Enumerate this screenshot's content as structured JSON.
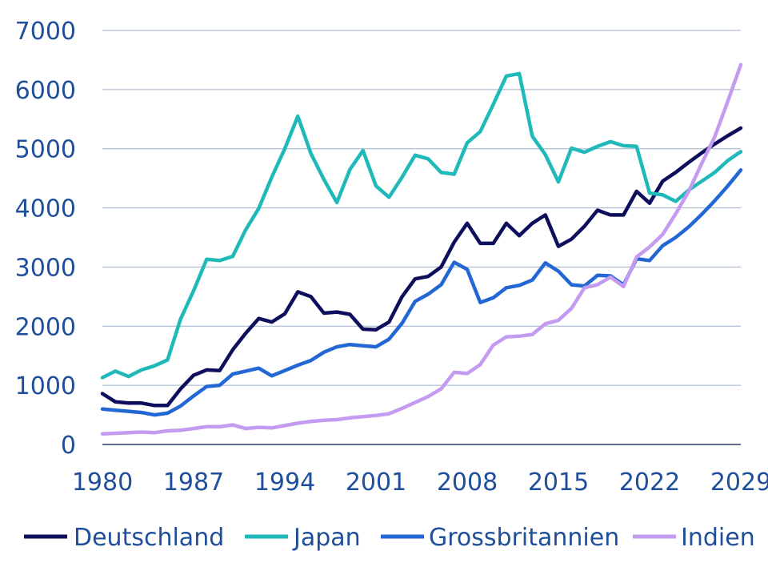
{
  "chart_data": {
    "type": "line",
    "title": "",
    "xlabel": "",
    "ylabel": "",
    "ylim": [
      0,
      7000
    ],
    "xlim": [
      1980,
      2029
    ],
    "yticks": [
      "0",
      "1000",
      "2000",
      "3000",
      "4000",
      "5000",
      "6000",
      "7000"
    ],
    "xticks": [
      "1980",
      "1987",
      "1994",
      "2001",
      "2008",
      "2015",
      "2022",
      "2029"
    ],
    "grid": "horizontal",
    "legend_position": "bottom",
    "x": [
      1980,
      1981,
      1982,
      1983,
      1984,
      1985,
      1986,
      1987,
      1988,
      1989,
      1990,
      1991,
      1992,
      1993,
      1994,
      1995,
      1996,
      1997,
      1998,
      1999,
      2000,
      2001,
      2002,
      2003,
      2004,
      2005,
      2006,
      2007,
      2008,
      2009,
      2010,
      2011,
      2012,
      2013,
      2014,
      2015,
      2016,
      2017,
      2018,
      2019,
      2020,
      2021,
      2022,
      2023,
      2024,
      2025,
      2026,
      2027,
      2028,
      2029
    ],
    "series": [
      {
        "name": "Deutschland",
        "color": "#0d0e5c",
        "values": [
          860,
          720,
          700,
          700,
          660,
          660,
          940,
          1170,
          1260,
          1250,
          1600,
          1880,
          2130,
          2070,
          2210,
          2580,
          2500,
          2220,
          2240,
          2200,
          1950,
          1940,
          2070,
          2500,
          2800,
          2840,
          3000,
          3420,
          3740,
          3400,
          3400,
          3740,
          3530,
          3740,
          3880,
          3350,
          3470,
          3690,
          3960,
          3880,
          3880,
          4280,
          4080,
          4450,
          4600,
          4770,
          4930,
          5080,
          5220,
          5350
        ]
      },
      {
        "name": "Japan",
        "color": "#20b9ba",
        "values": [
          1130,
          1240,
          1150,
          1260,
          1330,
          1430,
          2120,
          2600,
          3130,
          3110,
          3180,
          3630,
          3990,
          4520,
          5000,
          5550,
          4920,
          4480,
          4090,
          4650,
          4970,
          4370,
          4180,
          4520,
          4890,
          4830,
          4600,
          4570,
          5100,
          5290,
          5750,
          6230,
          6270,
          5210,
          4900,
          4440,
          5010,
          4940,
          5040,
          5120,
          5050,
          5040,
          4250,
          4220,
          4110,
          4300,
          4450,
          4600,
          4800,
          4950
        ]
      },
      {
        "name": "Grossbritannien",
        "color": "#2367d4",
        "values": [
          600,
          580,
          560,
          540,
          500,
          530,
          650,
          820,
          980,
          1000,
          1190,
          1240,
          1290,
          1160,
          1250,
          1340,
          1420,
          1560,
          1650,
          1690,
          1670,
          1650,
          1780,
          2050,
          2420,
          2540,
          2700,
          3080,
          2960,
          2400,
          2480,
          2650,
          2690,
          2780,
          3070,
          2930,
          2700,
          2680,
          2860,
          2850,
          2700,
          3140,
          3110,
          3360,
          3500,
          3680,
          3890,
          4120,
          4370,
          4640
        ]
      },
      {
        "name": "Indien",
        "color": "#c39bf0",
        "values": [
          180,
          190,
          200,
          210,
          200,
          230,
          240,
          270,
          300,
          300,
          330,
          270,
          290,
          280,
          320,
          360,
          390,
          410,
          420,
          450,
          470,
          490,
          520,
          610,
          710,
          810,
          940,
          1220,
          1200,
          1350,
          1680,
          1820,
          1830,
          1860,
          2040,
          2100,
          2300,
          2650,
          2700,
          2830,
          2670,
          3170,
          3340,
          3550,
          3900,
          4280,
          4750,
          5200,
          5800,
          6420
        ]
      }
    ]
  }
}
